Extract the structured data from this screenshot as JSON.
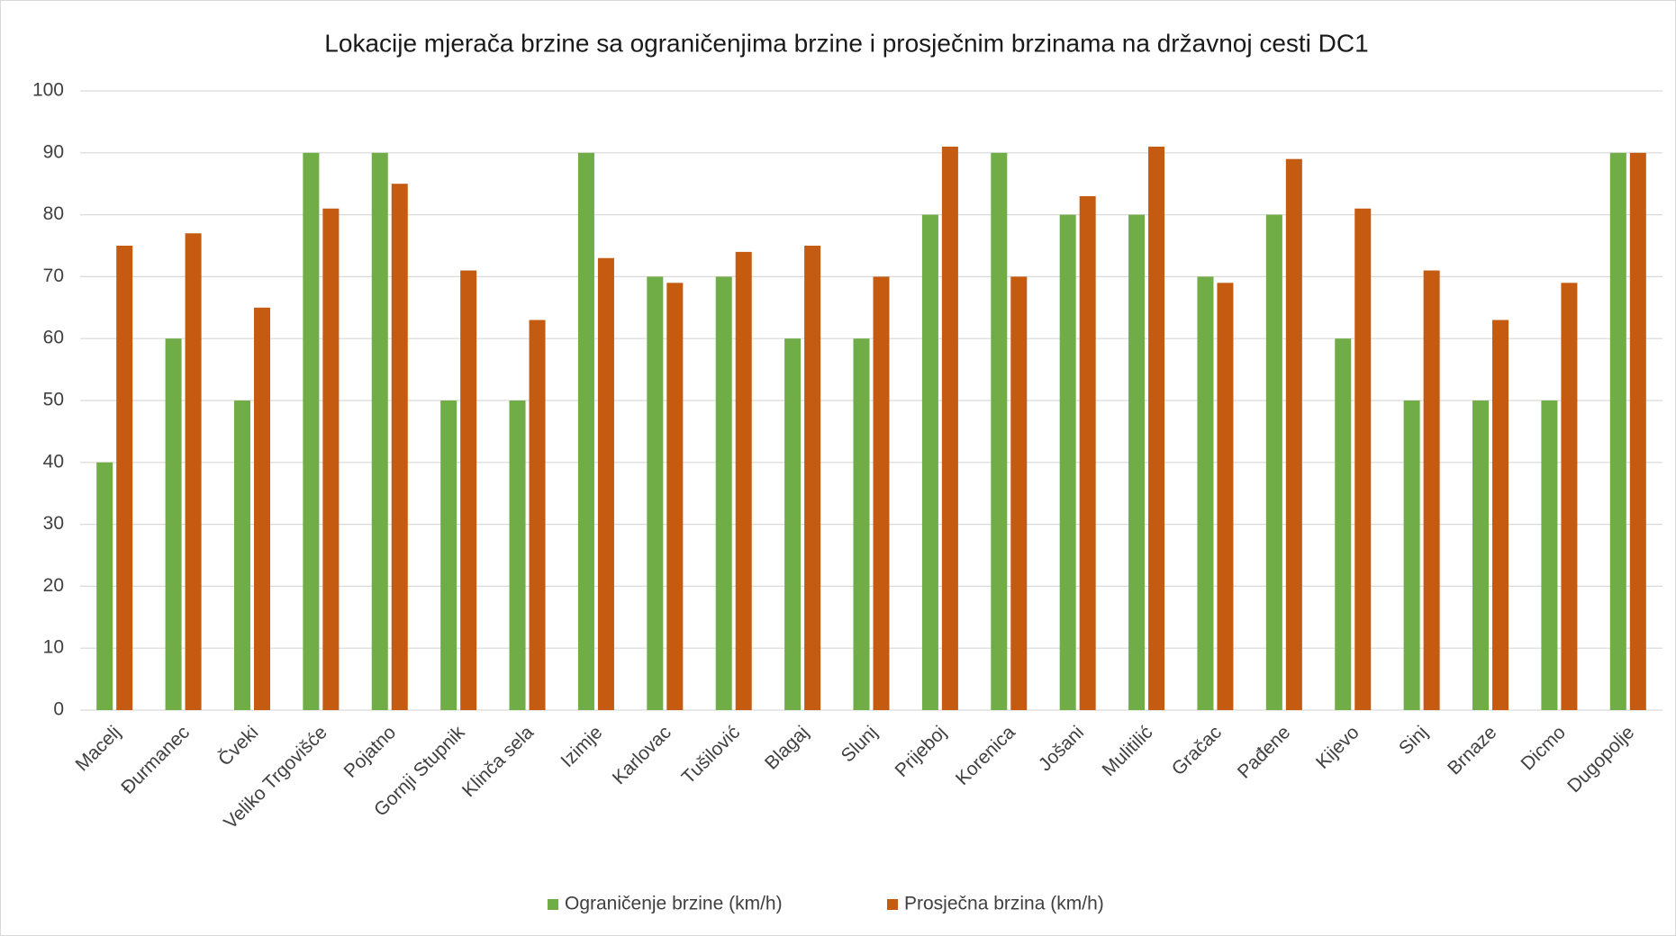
{
  "chart_data": {
    "type": "bar",
    "title": "Lokacije mjerača brzine sa ograničenjima brzine i prosječnim brzinama na državnoj cesti DC1",
    "categories": [
      "Macelj",
      "Đurmanec",
      "Čveki",
      "Veliko Trgovišće",
      "Pojatno",
      "Gornji Stupnik",
      "Klinča sela",
      "Izimje",
      "Karlovac",
      "Tušilović",
      "Blagaj",
      "Slunj",
      "Prijeboj",
      "Korenica",
      "Jošani",
      "Mulitilić",
      "Gračac",
      "Pađene",
      "Kijevo",
      "Sinj",
      "Brnaze",
      "Dicmo",
      "Dugopolje"
    ],
    "series": [
      {
        "name": "Ograničenje brzine (km/h)",
        "color": "#70ad47",
        "values": [
          40,
          60,
          50,
          90,
          90,
          50,
          50,
          90,
          70,
          70,
          60,
          60,
          80,
          90,
          80,
          80,
          70,
          80,
          60,
          50,
          50,
          50,
          90
        ]
      },
      {
        "name": "Prosječna brzina (km/h)",
        "color": "#c55a11",
        "values": [
          75,
          77,
          65,
          81,
          85,
          71,
          63,
          73,
          69,
          74,
          75,
          70,
          91,
          70,
          83,
          91,
          69,
          89,
          81,
          71,
          63,
          69,
          90
        ]
      }
    ],
    "ylim": [
      0,
      100
    ],
    "yticks": [
      0,
      10,
      20,
      30,
      40,
      50,
      60,
      70,
      80,
      90,
      100
    ],
    "grid": true,
    "legend": "bottom"
  }
}
